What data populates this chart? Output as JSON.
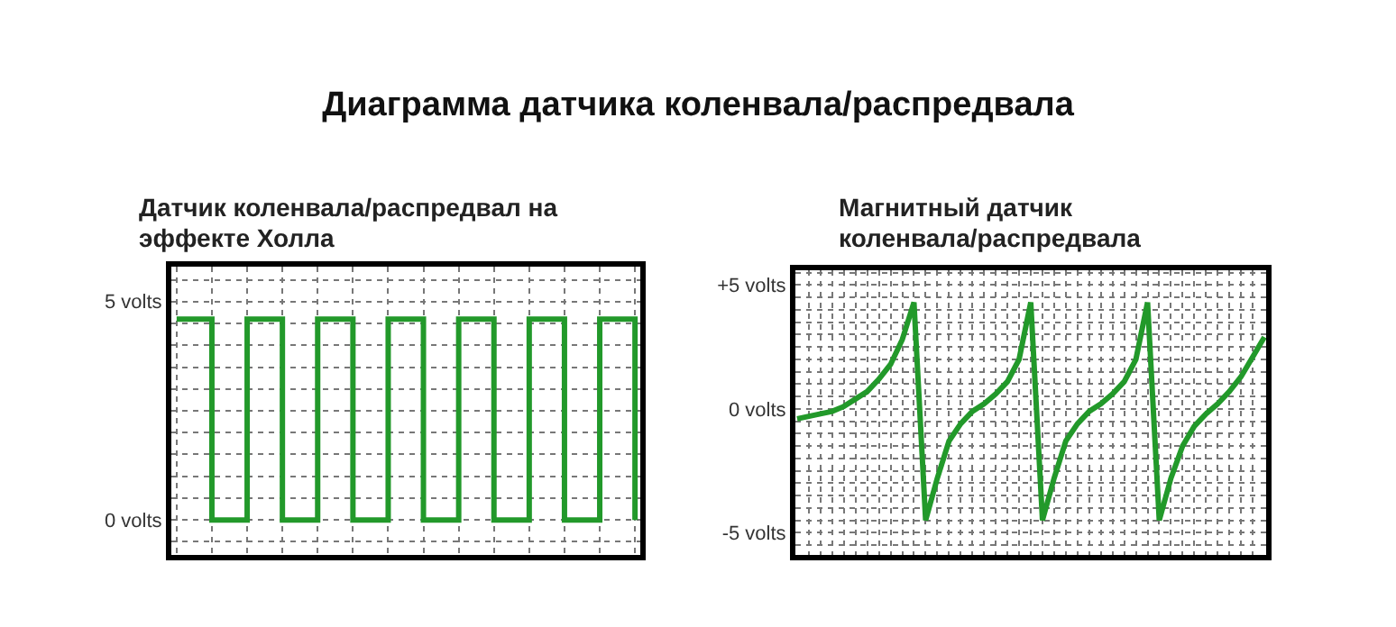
{
  "chart_data": [
    {
      "type": "other",
      "title": "Диаграмма датчика коленвала/распредвала"
    },
    {
      "type": "step",
      "title": "Датчик коленвала/распредвал на эффекте Холла",
      "categories": [
        null,
        null,
        null,
        null,
        null,
        null,
        null,
        null,
        null,
        null,
        null,
        null,
        null,
        null
      ],
      "series": [
        {
          "color": "#22992a",
          "values": [
            4.6,
            0,
            4.6,
            0,
            4.6,
            0,
            4.6,
            0,
            4.6,
            0,
            4.6,
            0,
            4.6,
            0
          ]
        }
      ],
      "ylim": [
        -0.8,
        5.8
      ],
      "yticks": [
        {
          "value": 5,
          "label": "5 volts"
        },
        {
          "value": 0,
          "label": "0 volts"
        }
      ],
      "grid": true,
      "tick_labels": "y"
    },
    {
      "type": "line",
      "title": "Магнитный датчик коленвала/распредвала",
      "categories": [
        null,
        null,
        null,
        null,
        null,
        null,
        null,
        null,
        null,
        null,
        null,
        null,
        null,
        null,
        null,
        null,
        null,
        null,
        null,
        null,
        null,
        null,
        null,
        null,
        null,
        null,
        null,
        null,
        null,
        null,
        null,
        null,
        null,
        null,
        null,
        null,
        null,
        null,
        null,
        null,
        null
      ],
      "series": [
        {
          "color": "#22992a",
          "values": [
            -0.4,
            -0.3,
            -0.2,
            -0.1,
            0.1,
            0.4,
            0.7,
            1.2,
            1.8,
            2.8,
            4.3,
            -4.5,
            -2.8,
            -1.3,
            -0.6,
            -0.1,
            0.2,
            0.6,
            1.1,
            2.0,
            4.3,
            -4.5,
            -2.8,
            -1.3,
            -0.6,
            -0.1,
            0.2,
            0.6,
            1.1,
            2.0,
            4.3,
            -4.5,
            -2.8,
            -1.5,
            -0.7,
            -0.2,
            0.2,
            0.7,
            1.3,
            2.1,
            2.9
          ]
        }
      ],
      "ylim": [
        -5.9,
        5.6
      ],
      "yticks": [
        {
          "value": 5,
          "label": "+5 volts"
        },
        {
          "value": 0,
          "label": "0 volts"
        },
        {
          "value": -5,
          "label": "-5 volts"
        }
      ],
      "grid": true,
      "tick_labels": "y"
    }
  ]
}
